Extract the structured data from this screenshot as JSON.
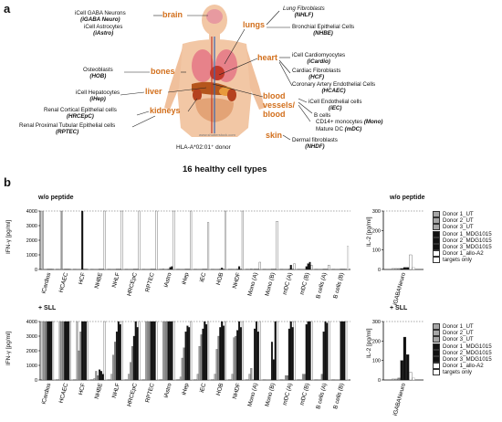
{
  "panel_a": {
    "label": "a",
    "organs": [
      "brain",
      "lungs",
      "heart",
      "bones",
      "liver",
      "kidneys",
      "blood vessels/ blood",
      "skin"
    ],
    "left_cells": [
      {
        "line1": "iCell GABA Neurons",
        "line2": "(iGABA Neuro)"
      },
      {
        "line1": "iCell Astrocytes",
        "line2": "(iAstro)"
      },
      {
        "line1": "Osteoblasts",
        "line2": "(HOB)"
      },
      {
        "line1": "iCell Hepatocytes",
        "line2": "(iHep)"
      },
      {
        "line1": "Renal Cortical Epithelial cells",
        "line2": "(HRCEpC)"
      },
      {
        "line1": "Renal Proximal Tubular Epithelial cells",
        "line2": "(RPTEC)"
      }
    ],
    "right_cells": [
      {
        "line1": "Lung Fibroblasts",
        "line2": "(NHLF)"
      },
      {
        "line1": "Bronchial Epithelial Cells",
        "line2": "(NHBE)"
      },
      {
        "line1": "iCell Cardiomyocytes",
        "line2": "(iCardio)"
      },
      {
        "line1": "Cardiac Fibroblasts",
        "line2": "(HCF)"
      },
      {
        "line1": "Coronary Artery Endothelial Cells",
        "line2": "(HCAEC)"
      },
      {
        "line1": "iCell Endothelial cells",
        "line2": "(iEC)"
      },
      {
        "line1": "B cells",
        "line2": ""
      },
      {
        "line1": "CD14+ monocytes",
        "line2": "(Mono)"
      },
      {
        "line1": "Mature DC",
        "line2": "(mDC)"
      },
      {
        "line1": "Dermal fibroblasts",
        "line2": "(NHDF)"
      }
    ],
    "watermark": "www.shutterstock.com",
    "donor": "HLA-A*02:01⁺ donor",
    "subtitle": "16 healthy cell types"
  },
  "panel_b": {
    "label": "b",
    "top_title": "w/o peptide",
    "bottom_title": "+ SLL",
    "right_top_title": "w/o peptide",
    "right_bottom_title": "+ SLL",
    "ylabel_left": "IFN-γ [pg/ml]",
    "ylabel_right": "IL-2 [pg/ml]",
    "left_yticks": [
      "0",
      "1000",
      "2000",
      "3000",
      "4000"
    ],
    "right_yticks": [
      "0",
      "100",
      "200",
      "300"
    ],
    "legend": [
      "Donor 1_UT",
      "Donor 2_UT",
      "Donor 3_UT",
      "Donor 1_MDG1015",
      "Donor 2_MDG1015",
      "Donor 3_MDG1015",
      "Donor 1_allo-A2",
      "targets only"
    ],
    "legend_colors": [
      "#a6a6a6",
      "#a6a6a6",
      "#a6a6a6",
      "#111111",
      "#111111",
      "#111111",
      "#ffffff",
      "#ffffff"
    ]
  },
  "chart_data": [
    {
      "type": "bar",
      "title": "w/o peptide",
      "ylabel": "IFN-γ [pg/ml]",
      "ylim": [
        0,
        4000
      ],
      "categories": [
        "iCardios",
        "HCAEC",
        "HCF",
        "NHBE",
        "NHLF",
        "HRCEpC",
        "RPTEC",
        "iAstro",
        "iHep",
        "iEC",
        "HOB",
        "NHDF",
        "Mono (A)",
        "Mono (B)",
        "mDC (A)",
        "mDC (B)",
        "B cells (A)",
        "B cells (B)"
      ],
      "series": [
        {
          "name": "Donor 1_UT",
          "values": [
            4000,
            0,
            20,
            0,
            0,
            0,
            0,
            50,
            0,
            20,
            0,
            30,
            0,
            0,
            0,
            0,
            0,
            0
          ]
        },
        {
          "name": "Donor 2_UT",
          "values": [
            0,
            4000,
            0,
            0,
            0,
            0,
            0,
            0,
            0,
            0,
            0,
            0,
            50,
            0,
            0,
            0,
            0,
            0
          ]
        },
        {
          "name": "Donor 3_UT",
          "values": [
            0,
            0,
            0,
            0,
            0,
            0,
            0,
            0,
            0,
            0,
            0,
            0,
            0,
            0,
            0,
            0,
            0,
            0
          ]
        },
        {
          "name": "Donor 1_MDG1015",
          "values": [
            0,
            0,
            4000,
            0,
            0,
            0,
            0,
            0,
            0,
            0,
            0,
            0,
            0,
            0,
            0,
            200,
            0,
            0
          ]
        },
        {
          "name": "Donor 2_MDG1015",
          "values": [
            0,
            0,
            0,
            0,
            0,
            0,
            0,
            150,
            0,
            0,
            100,
            200,
            0,
            0,
            300,
            400,
            0,
            0
          ]
        },
        {
          "name": "Donor 3_MDG1015",
          "values": [
            0,
            0,
            0,
            0,
            0,
            0,
            0,
            200,
            0,
            0,
            0,
            0,
            0,
            0,
            0,
            500,
            0,
            0
          ]
        },
        {
          "name": "Donor 1_allo-A2",
          "values": [
            0,
            0,
            0,
            4000,
            4000,
            4000,
            4000,
            4000,
            4000,
            3200,
            4000,
            4000,
            500,
            3300,
            400,
            300,
            300,
            0
          ]
        },
        {
          "name": "targets only",
          "values": [
            0,
            0,
            0,
            0,
            0,
            0,
            0,
            0,
            0,
            0,
            0,
            0,
            0,
            0,
            0,
            0,
            0,
            1600
          ]
        }
      ]
    },
    {
      "type": "bar",
      "title": "+ SLL",
      "ylabel": "IFN-γ [pg/ml]",
      "ylim": [
        0,
        4000
      ],
      "categories": [
        "iCardios",
        "HCAEC",
        "HCF",
        "NHBE",
        "NHLF",
        "HRCEpC",
        "RPTEC",
        "iAstro",
        "iHep",
        "iEC",
        "HOB",
        "NHDF",
        "Mono (A)",
        "Mono (B)",
        "mDC (A)",
        "mDC (B)",
        "B cells (A)",
        "B cells (B)"
      ],
      "series": [
        {
          "name": "Donor 1_UT",
          "values": [
            4000,
            4000,
            4000,
            100,
            400,
            400,
            4000,
            4000,
            200,
            400,
            400,
            400,
            400,
            0,
            0,
            0,
            0,
            0
          ]
        },
        {
          "name": "Donor 2_UT",
          "values": [
            4000,
            4000,
            2000,
            600,
            1700,
            1200,
            4000,
            4000,
            1500,
            2300,
            2100,
            2900,
            800,
            0,
            300,
            400,
            0,
            0
          ]
        },
        {
          "name": "Donor 3_UT",
          "values": [
            4000,
            4000,
            3300,
            300,
            2600,
            2300,
            4000,
            4000,
            2200,
            3100,
            3000,
            3000,
            0,
            0,
            300,
            400,
            400,
            0
          ]
        },
        {
          "name": "Donor 1_MDG1015",
          "values": [
            4000,
            4000,
            4000,
            700,
            3300,
            3000,
            4000,
            4000,
            3300,
            3500,
            3600,
            3400,
            3500,
            2600,
            3500,
            3800,
            3300,
            4000
          ]
        },
        {
          "name": "Donor 2_MDG1015",
          "values": [
            4000,
            4000,
            4000,
            600,
            4000,
            4000,
            4000,
            4000,
            3700,
            4000,
            4000,
            4000,
            4000,
            1400,
            4000,
            4000,
            4000,
            4000
          ]
        },
        {
          "name": "Donor 3_MDG1015",
          "values": [
            4000,
            4000,
            4000,
            400,
            3800,
            3600,
            4000,
            4000,
            3600,
            3800,
            3700,
            3600,
            3300,
            4000,
            3600,
            4000,
            3900,
            4000
          ]
        },
        {
          "name": "Donor 1_allo-A2",
          "values": [
            4000,
            4000,
            4000,
            4000,
            4000,
            4000,
            4000,
            4000,
            4000,
            4000,
            4000,
            4000,
            4000,
            4000,
            4000,
            4000,
            4000,
            4000
          ]
        },
        {
          "name": "targets only",
          "values": [
            0,
            0,
            0,
            0,
            0,
            0,
            0,
            0,
            0,
            0,
            0,
            0,
            0,
            0,
            0,
            0,
            0,
            0
          ]
        }
      ]
    },
    {
      "type": "bar",
      "title": "w/o peptide",
      "ylabel": "IL-2 [pg/ml]",
      "ylim": [
        0,
        300
      ],
      "categories": [
        "iGABANeuro"
      ],
      "series": [
        {
          "name": "Donor 1_UT",
          "values": [
            5
          ]
        },
        {
          "name": "Donor 2_UT",
          "values": [
            5
          ]
        },
        {
          "name": "Donor 3_UT",
          "values": [
            5
          ]
        },
        {
          "name": "Donor 1_MDG1015",
          "values": [
            5
          ]
        },
        {
          "name": "Donor 2_MDG1015",
          "values": [
            10
          ]
        },
        {
          "name": "Donor 3_MDG1015",
          "values": [
            10
          ]
        },
        {
          "name": "Donor 1_allo-A2",
          "values": [
            75
          ]
        },
        {
          "name": "targets only",
          "values": [
            10
          ]
        }
      ]
    },
    {
      "type": "bar",
      "title": "+ SLL",
      "ylabel": "IL-2 [pg/ml]",
      "ylim": [
        0,
        300
      ],
      "categories": [
        "iGABANeuro"
      ],
      "series": [
        {
          "name": "Donor 1_UT",
          "values": [
            5
          ]
        },
        {
          "name": "Donor 2_UT",
          "values": [
            5
          ]
        },
        {
          "name": "Donor 3_UT",
          "values": [
            10
          ]
        },
        {
          "name": "Donor 1_MDG1015",
          "values": [
            100
          ]
        },
        {
          "name": "Donor 2_MDG1015",
          "values": [
            220
          ]
        },
        {
          "name": "Donor 3_MDG1015",
          "values": [
            130
          ]
        },
        {
          "name": "Donor 1_allo-A2",
          "values": [
            40
          ]
        },
        {
          "name": "targets only",
          "values": [
            10
          ]
        }
      ]
    }
  ]
}
